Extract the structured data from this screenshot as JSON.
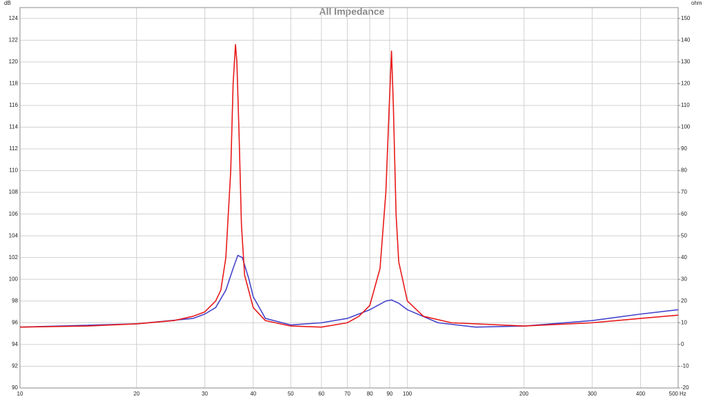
{
  "chart_data": {
    "type": "line",
    "title": "All Impedance",
    "y_label": "dB",
    "y2_label": "ohm",
    "x_unit": "Hz",
    "log_x": true,
    "grid": true,
    "xlim": [
      10,
      500
    ],
    "xticks": [
      10,
      20,
      30,
      40,
      50,
      60,
      70,
      80,
      90,
      100,
      200,
      300,
      400,
      500
    ],
    "ylim": [
      90,
      125
    ],
    "yticks": [
      90,
      92,
      94,
      96,
      98,
      100,
      102,
      104,
      106,
      108,
      110,
      112,
      114,
      116,
      118,
      120,
      122,
      124
    ],
    "y2lim": [
      -20,
      155
    ],
    "y2ticks": [
      -20,
      -10,
      0,
      10,
      20,
      30,
      40,
      50,
      60,
      70,
      80,
      90,
      100,
      110,
      120,
      130,
      140,
      150
    ],
    "series": [
      {
        "color": "#4444cc",
        "axis": "y2",
        "x": [
          10,
          20,
          28,
          30,
          32,
          34,
          35.5,
          36.5,
          37.5,
          39,
          40,
          43,
          50,
          60,
          70,
          80,
          88,
          91,
          95,
          100,
          120,
          150,
          200,
          300,
          400,
          500
        ],
        "values": [
          8,
          9.5,
          12,
          14,
          17,
          25,
          35,
          41,
          40,
          30,
          22,
          12,
          9,
          10,
          12,
          16,
          20,
          20.5,
          19,
          16,
          10,
          8,
          8.5,
          11,
          14,
          16
        ]
      },
      {
        "color": "#e81818",
        "axis": "y2",
        "x": [
          10,
          15,
          20,
          25,
          28,
          30,
          32,
          33,
          34,
          35,
          35.5,
          36,
          36.3,
          36.8,
          37.3,
          38,
          40,
          43,
          50,
          60,
          70,
          75,
          80,
          85,
          88,
          89.8,
          91,
          92,
          93.5,
          95,
          100,
          110,
          130,
          200,
          300,
          400,
          500
        ],
        "values": [
          8,
          8.5,
          9.5,
          11,
          13,
          15,
          20,
          25,
          40,
          80,
          120,
          138,
          130,
          95,
          55,
          32,
          17,
          11,
          8.5,
          8,
          10,
          13,
          18,
          35,
          70,
          110,
          135,
          110,
          60,
          38,
          20,
          13,
          10,
          8.5,
          10,
          12,
          13.5
        ]
      }
    ]
  }
}
